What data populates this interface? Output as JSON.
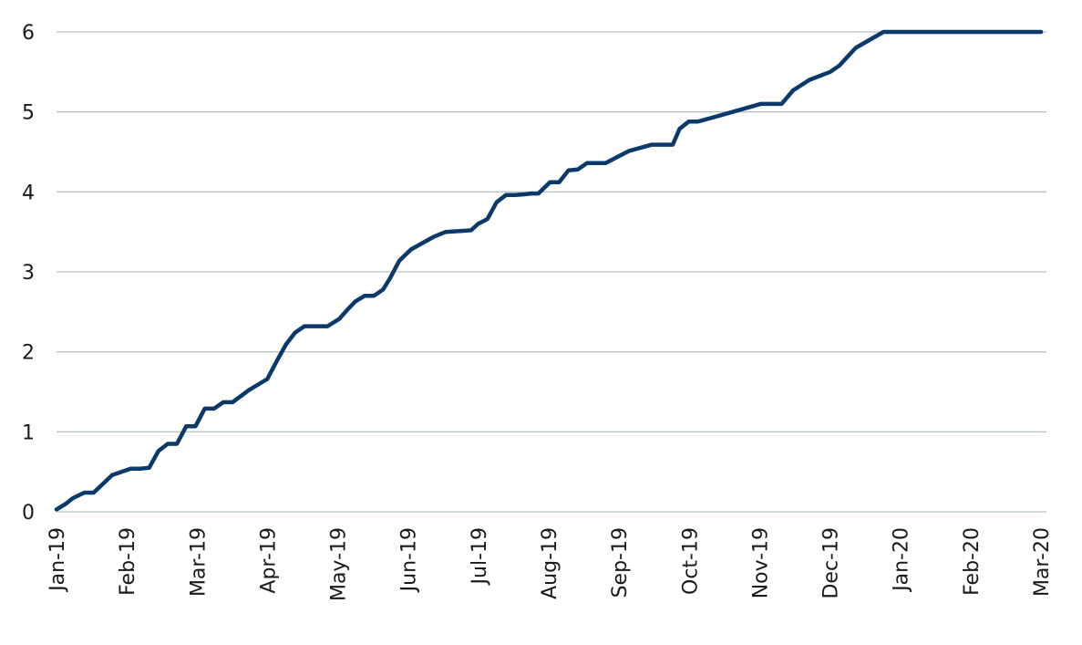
{
  "chart_data": {
    "type": "line",
    "title": "",
    "xlabel": "",
    "ylabel": "",
    "ylim": [
      0,
      6
    ],
    "yticks": [
      "0",
      "1",
      "2",
      "3",
      "4",
      "5",
      "6"
    ],
    "grid": true,
    "legend": "none",
    "x_tick_labels": [
      "Jan-19",
      "Feb-19",
      "Mar-19",
      "Apr-19",
      "May-19",
      "Jun-19",
      "Jul-19",
      "Aug-19",
      "Sep-19",
      "Oct-19",
      "Nov-19",
      "Dec-19",
      "Jan-20",
      "Feb-20",
      "Mar-20"
    ],
    "line_color": "#0b3a6a",
    "series": [
      {
        "x": [
          "2019-01-01",
          "2019-01-05",
          "2019-01-08",
          "2019-01-13",
          "2019-01-17",
          "2019-01-20",
          "2019-01-25",
          "2019-02-02",
          "2019-02-06",
          "2019-02-10",
          "2019-02-14",
          "2019-02-18",
          "2019-02-22",
          "2019-02-26",
          "2019-03-02",
          "2019-03-06",
          "2019-03-10",
          "2019-03-14",
          "2019-03-18",
          "2019-03-25",
          "2019-04-02",
          "2019-04-06",
          "2019-04-10",
          "2019-04-14",
          "2019-04-18",
          "2019-04-23",
          "2019-04-28",
          "2019-05-03",
          "2019-05-07",
          "2019-05-10",
          "2019-05-14",
          "2019-05-18",
          "2019-05-22",
          "2019-05-25",
          "2019-05-29",
          "2019-06-03",
          "2019-06-08",
          "2019-06-13",
          "2019-06-18",
          "2019-06-24",
          "2019-06-29",
          "2019-07-02",
          "2019-07-06",
          "2019-07-10",
          "2019-07-14",
          "2019-07-18",
          "2019-07-22",
          "2019-07-25",
          "2019-07-28",
          "2019-08-02",
          "2019-08-06",
          "2019-08-10",
          "2019-08-14",
          "2019-08-18",
          "2019-08-22",
          "2019-08-26",
          "2019-09-05",
          "2019-09-15",
          "2019-09-24",
          "2019-09-27",
          "2019-10-01",
          "2019-10-05",
          "2019-10-15",
          "2019-11-01",
          "2019-11-10",
          "2019-11-15",
          "2019-11-22",
          "2019-12-01",
          "2019-12-05",
          "2019-12-12",
          "2019-12-24",
          "2019-12-28",
          "2020-01-01",
          "2020-01-10",
          "2020-01-15",
          "2020-01-20",
          "2020-01-25",
          "2020-02-01",
          "2020-02-04",
          "2020-02-10",
          "2020-02-14",
          "2020-02-17",
          "2020-02-20",
          "2020-02-23",
          "2020-02-26",
          "2020-02-28",
          "2020-03-01"
        ],
        "values": [
          0.03,
          0.1,
          0.17,
          0.24,
          0.24,
          0.32,
          0.46,
          0.54,
          0.54,
          0.55,
          0.76,
          0.85,
          0.85,
          1.07,
          1.07,
          1.29,
          1.29,
          1.37,
          1.37,
          1.52,
          1.66,
          1.88,
          2.09,
          2.24,
          2.32,
          2.32,
          2.32,
          2.41,
          2.54,
          2.63,
          2.7,
          2.7,
          2.78,
          2.92,
          3.14,
          3.28,
          3.36,
          3.44,
          3.5,
          3.51,
          3.52,
          3.6,
          3.66,
          3.87,
          3.96,
          3.96,
          3.97,
          3.98,
          3.98,
          4.12,
          4.12,
          4.27,
          4.28,
          4.36,
          4.36,
          4.36,
          4.51,
          4.59,
          4.59,
          4.79,
          4.88,
          4.88,
          4.96,
          5.1,
          5.1,
          5.27,
          5.4,
          5.5,
          5.58,
          5.8,
          6.0,
          6.0,
          6.0,
          6.0,
          6.0,
          6.0,
          6.0,
          6.0,
          6.0,
          6.0,
          6.0,
          6.0,
          6.0,
          6.0,
          6.0,
          6.0,
          6.0
        ]
      }
    ]
  }
}
